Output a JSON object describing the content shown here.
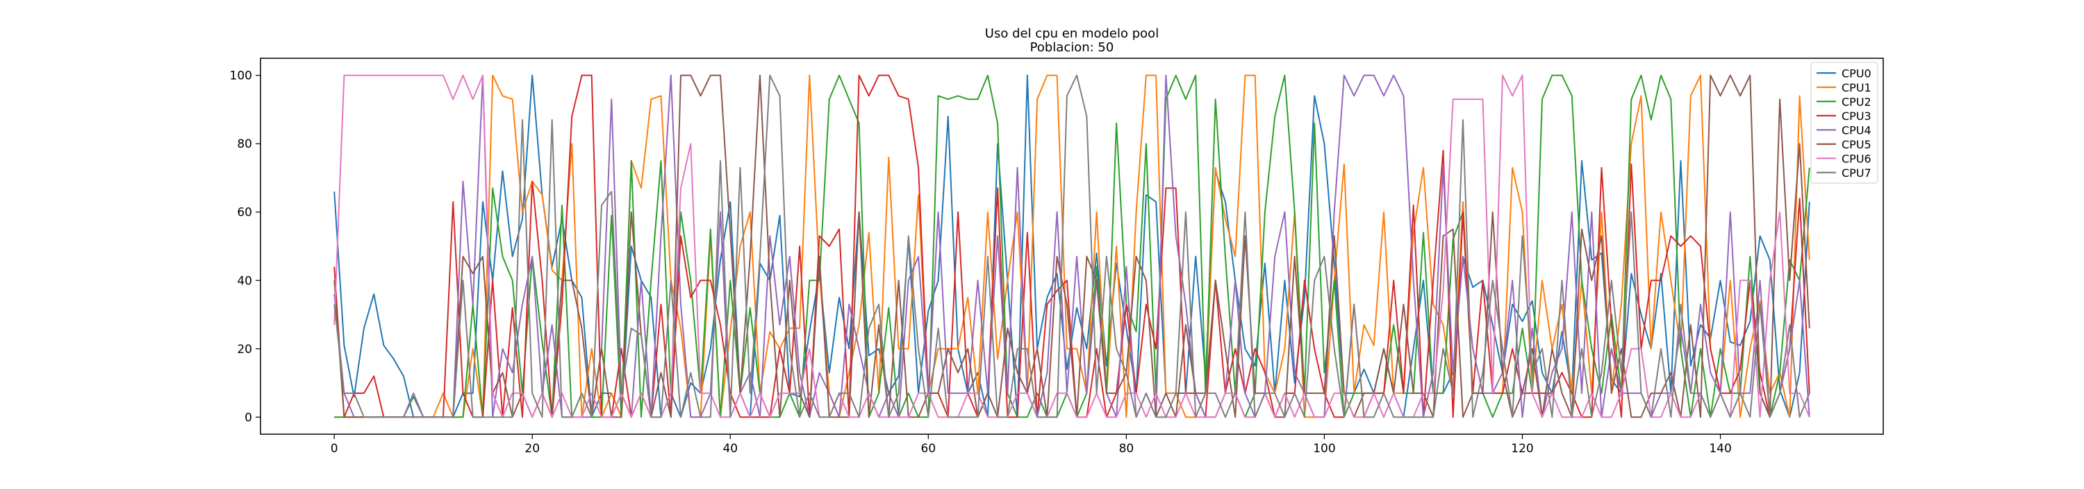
{
  "chart_data": {
    "type": "line",
    "title": "Uso del cpu en modelo pool",
    "subtitle": "Poblacion: 50",
    "xlabel": "",
    "ylabel": "",
    "xlim": [
      -7.45,
      156.45
    ],
    "ylim": [
      -5,
      105
    ],
    "xticks": [
      0,
      20,
      40,
      60,
      80,
      100,
      120,
      140
    ],
    "yticks": [
      0,
      20,
      40,
      60,
      80,
      100
    ],
    "grid": false,
    "legend_position": "top-right",
    "x": [
      0,
      1,
      2,
      3,
      4,
      5,
      6,
      7,
      8,
      9,
      10,
      11,
      12,
      13,
      14,
      15,
      16,
      17,
      18,
      19,
      20,
      21,
      22,
      23,
      24,
      25,
      26,
      27,
      28,
      29,
      30,
      31,
      32,
      33,
      34,
      35,
      36,
      37,
      38,
      39,
      40,
      41,
      42,
      43,
      44,
      45,
      46,
      47,
      48,
      49,
      50,
      51,
      52,
      53,
      54,
      55,
      56,
      57,
      58,
      59,
      60,
      61,
      62,
      63,
      64,
      65,
      66,
      67,
      68,
      69,
      70,
      71,
      72,
      73,
      74,
      75,
      76,
      77,
      78,
      79,
      80,
      81,
      82,
      83,
      84,
      85,
      86,
      87,
      88,
      89,
      90,
      91,
      92,
      93,
      94,
      95,
      96,
      97,
      98,
      99,
      100,
      101,
      102,
      103,
      104,
      105,
      106,
      107,
      108,
      109,
      110,
      111,
      112,
      113,
      114,
      115,
      116,
      117,
      118,
      119,
      120,
      121,
      122,
      123,
      124,
      125,
      126,
      127,
      128,
      129,
      130,
      131,
      132,
      133,
      134,
      135,
      136,
      137,
      138,
      139,
      140,
      141,
      142,
      143,
      144,
      145,
      146,
      147,
      148,
      149
    ],
    "series": [
      {
        "name": "CPU0",
        "color": "#1f77b4",
        "values": [
          66,
          21,
          6,
          26,
          36,
          21,
          17,
          12,
          0,
          0,
          0,
          0,
          0,
          7,
          7,
          63,
          40,
          72,
          47,
          58,
          100,
          65,
          44,
          58,
          40,
          35,
          0,
          7,
          7,
          0,
          50,
          40,
          35,
          0,
          7,
          0,
          10,
          7,
          20,
          46,
          63,
          7,
          0,
          45,
          40,
          59,
          7,
          6,
          25,
          42,
          13,
          35,
          20,
          60,
          18,
          20,
          7,
          12,
          52,
          7,
          31,
          40,
          88,
          20,
          7,
          13,
          0,
          80,
          40,
          0,
          100,
          20,
          35,
          42,
          14,
          32,
          20,
          48,
          15,
          45,
          26,
          7,
          65,
          63,
          7,
          7,
          7,
          47,
          12,
          72,
          63,
          40,
          20,
          15,
          45,
          7,
          40,
          10,
          35,
          94,
          80,
          45,
          7,
          7,
          14,
          7,
          20,
          7,
          0,
          20,
          40,
          7,
          7,
          13,
          47,
          38,
          40,
          27,
          13,
          33,
          28,
          34,
          13,
          7,
          25,
          7,
          75,
          46,
          48,
          11,
          7,
          42,
          30,
          20,
          42,
          7,
          75,
          15,
          27,
          23,
          40,
          22,
          21,
          28,
          53,
          46,
          8,
          0,
          13,
          63
        ]
      },
      {
        "name": "CPU1",
        "color": "#ff7f0e",
        "values": [
          0,
          0,
          0,
          0,
          0,
          0,
          0,
          0,
          0,
          0,
          0,
          7,
          0,
          0,
          20,
          0,
          100,
          94,
          93,
          60,
          69,
          65,
          43,
          40,
          80,
          0,
          20,
          0,
          7,
          0,
          75,
          67,
          93,
          94,
          40,
          26,
          0,
          0,
          53,
          0,
          25,
          50,
          60,
          7,
          25,
          20,
          26,
          26,
          100,
          42,
          7,
          0,
          13,
          27,
          54,
          7,
          76,
          20,
          20,
          65,
          7,
          20,
          20,
          20,
          35,
          7,
          60,
          17,
          40,
          60,
          7,
          93,
          100,
          100,
          20,
          20,
          7,
          60,
          7,
          50,
          0,
          60,
          100,
          100,
          7,
          7,
          0,
          0,
          7,
          73,
          58,
          47,
          100,
          100,
          13,
          7,
          20,
          60,
          0,
          0,
          0,
          40,
          74,
          7,
          27,
          21,
          60,
          7,
          7,
          54,
          73,
          33,
          27,
          7,
          63,
          7,
          7,
          7,
          7,
          73,
          60,
          7,
          40,
          20,
          33,
          7,
          40,
          7,
          60,
          7,
          33,
          80,
          94,
          20,
          60,
          40,
          20,
          94,
          100,
          20,
          7,
          40,
          0,
          20,
          34,
          7,
          13,
          0,
          94,
          46
        ]
      },
      {
        "name": "CPU2",
        "color": "#2ca02c",
        "values": [
          0,
          0,
          0,
          0,
          0,
          0,
          0,
          0,
          6,
          0,
          0,
          0,
          0,
          0,
          33,
          0,
          67,
          47,
          40,
          7,
          47,
          22,
          0,
          62,
          0,
          7,
          0,
          0,
          59,
          0,
          75,
          0,
          40,
          75,
          7,
          60,
          40,
          7,
          55,
          0,
          40,
          7,
          32,
          7,
          0,
          0,
          7,
          0,
          40,
          40,
          93,
          100,
          93,
          86,
          0,
          7,
          32,
          0,
          7,
          0,
          0,
          94,
          93,
          94,
          93,
          93,
          100,
          86,
          7,
          0,
          0,
          7,
          0,
          0,
          7,
          0,
          7,
          44,
          7,
          86,
          33,
          25,
          80,
          7,
          93,
          100,
          93,
          100,
          7,
          93,
          47,
          7,
          0,
          7,
          60,
          88,
          100,
          60,
          7,
          86,
          13,
          40,
          0,
          7,
          7,
          7,
          7,
          27,
          7,
          7,
          54,
          7,
          7,
          52,
          60,
          7,
          7,
          0,
          7,
          7,
          26,
          7,
          93,
          100,
          100,
          94,
          40,
          20,
          7,
          30,
          7,
          93,
          100,
          87,
          100,
          93,
          20,
          0,
          20,
          0,
          20,
          7,
          7,
          47,
          7,
          0,
          13,
          46,
          40,
          73
        ]
      },
      {
        "name": "CPU3",
        "color": "#d62728",
        "values": [
          44,
          0,
          7,
          7,
          12,
          0,
          0,
          0,
          0,
          0,
          0,
          0,
          63,
          7,
          0,
          0,
          40,
          0,
          32,
          0,
          69,
          40,
          0,
          33,
          88,
          100,
          100,
          0,
          0,
          20,
          0,
          7,
          0,
          33,
          0,
          53,
          35,
          40,
          40,
          27,
          7,
          0,
          0,
          0,
          0,
          20,
          7,
          50,
          0,
          53,
          50,
          55,
          0,
          100,
          94,
          100,
          100,
          94,
          93,
          73,
          7,
          7,
          0,
          60,
          7,
          0,
          7,
          67,
          0,
          0,
          54,
          0,
          33,
          37,
          40,
          0,
          0,
          20,
          0,
          7,
          33,
          7,
          33,
          20,
          67,
          67,
          7,
          7,
          0,
          40,
          7,
          20,
          7,
          20,
          13,
          0,
          7,
          7,
          40,
          20,
          7,
          0,
          0,
          33,
          0,
          7,
          7,
          40,
          7,
          62,
          0,
          40,
          78,
          0,
          60,
          7,
          40,
          7,
          7,
          20,
          7,
          7,
          7,
          7,
          13,
          7,
          0,
          0,
          73,
          27,
          0,
          74,
          20,
          40,
          40,
          53,
          50,
          53,
          50,
          20,
          7,
          7,
          14,
          40,
          13,
          0,
          7,
          20,
          64,
          7
        ]
      },
      {
        "name": "CPU4",
        "color": "#9467bd",
        "values": [
          36,
          7,
          0,
          0,
          0,
          0,
          0,
          0,
          7,
          0,
          0,
          0,
          0,
          69,
          33,
          100,
          0,
          20,
          13,
          33,
          47,
          7,
          27,
          0,
          0,
          0,
          0,
          20,
          93,
          7,
          0,
          40,
          0,
          53,
          100,
          33,
          0,
          0,
          7,
          60,
          0,
          7,
          13,
          0,
          53,
          27,
          47,
          13,
          0,
          13,
          7,
          0,
          33,
          20,
          7,
          0,
          7,
          0,
          40,
          47,
          7,
          60,
          7,
          7,
          7,
          40,
          7,
          53,
          7,
          73,
          7,
          0,
          13,
          60,
          7,
          47,
          7,
          40,
          7,
          0,
          44,
          0,
          7,
          0,
          100,
          53,
          33,
          7,
          0,
          0,
          7,
          40,
          7,
          0,
          7,
          47,
          60,
          13,
          7,
          0,
          0,
          60,
          100,
          94,
          100,
          100,
          94,
          100,
          94,
          40,
          0,
          13,
          73,
          13,
          47,
          20,
          7,
          7,
          13,
          40,
          0,
          26,
          0,
          13,
          20,
          60,
          7,
          60,
          0,
          20,
          7,
          7,
          7,
          0,
          7,
          7,
          26,
          7,
          33,
          13,
          7,
          60,
          7,
          7,
          40,
          0,
          7,
          20,
          40,
          0
        ]
      },
      {
        "name": "CPU5",
        "color": "#8c564b",
        "values": [
          40,
          0,
          0,
          0,
          0,
          0,
          0,
          0,
          0,
          0,
          0,
          0,
          0,
          47,
          42,
          47,
          7,
          13,
          0,
          7,
          0,
          7,
          0,
          40,
          40,
          26,
          0,
          20,
          0,
          0,
          60,
          24,
          0,
          13,
          0,
          100,
          100,
          94,
          100,
          100,
          54,
          7,
          47,
          100,
          40,
          0,
          40,
          7,
          0,
          47,
          0,
          0,
          0,
          60,
          0,
          27,
          0,
          40,
          0,
          0,
          7,
          7,
          20,
          13,
          20,
          0,
          7,
          0,
          26,
          13,
          7,
          20,
          0,
          47,
          33,
          0,
          47,
          40,
          7,
          7,
          13,
          47,
          40,
          0,
          7,
          0,
          27,
          7,
          7,
          40,
          20,
          0,
          53,
          7,
          7,
          0,
          0,
          47,
          7,
          7,
          7,
          53,
          7,
          0,
          7,
          7,
          20,
          7,
          33,
          7,
          7,
          0,
          53,
          55,
          0,
          7,
          7,
          60,
          13,
          0,
          7,
          20,
          0,
          20,
          7,
          0,
          55,
          40,
          53,
          7,
          20,
          0,
          0,
          7,
          7,
          13,
          0,
          27,
          0,
          100,
          94,
          100,
          94,
          100,
          7,
          0,
          93,
          40,
          80,
          26
        ]
      },
      {
        "name": "CPU6",
        "color": "#e377c2",
        "values": [
          27,
          100,
          100,
          100,
          100,
          100,
          100,
          100,
          100,
          100,
          100,
          100,
          93,
          100,
          93,
          100,
          7,
          0,
          7,
          7,
          0,
          7,
          0,
          7,
          0,
          0,
          7,
          0,
          0,
          7,
          0,
          7,
          0,
          0,
          7,
          67,
          80,
          7,
          7,
          0,
          0,
          7,
          0,
          7,
          0,
          7,
          7,
          7,
          20,
          0,
          0,
          7,
          0,
          0,
          7,
          0,
          0,
          0,
          0,
          7,
          7,
          0,
          0,
          0,
          7,
          7,
          0,
          0,
          0,
          7,
          7,
          0,
          0,
          7,
          7,
          0,
          0,
          7,
          0,
          0,
          7,
          7,
          0,
          7,
          0,
          0,
          7,
          0,
          0,
          0,
          7,
          7,
          0,
          0,
          7,
          0,
          7,
          0,
          7,
          0,
          0,
          7,
          7,
          0,
          0,
          7,
          0,
          7,
          0,
          0,
          7,
          7,
          37,
          93,
          93,
          93,
          93,
          7,
          100,
          94,
          100,
          7,
          0,
          7,
          0,
          0,
          0,
          7,
          0,
          0,
          7,
          20,
          20,
          0,
          0,
          7,
          0,
          0,
          7,
          0,
          7,
          0,
          40,
          40,
          0,
          40,
          60,
          7,
          7,
          0
        ]
      },
      {
        "name": "CPU7",
        "color": "#7f7f7f",
        "values": [
          33,
          7,
          7,
          0,
          0,
          0,
          0,
          0,
          0,
          0,
          0,
          0,
          0,
          40,
          0,
          0,
          0,
          0,
          0,
          87,
          7,
          0,
          87,
          0,
          0,
          7,
          0,
          62,
          66,
          7,
          26,
          24,
          0,
          0,
          40,
          0,
          13,
          0,
          0,
          75,
          0,
          73,
          7,
          47,
          100,
          94,
          20,
          0,
          7,
          0,
          0,
          7,
          7,
          0,
          26,
          33,
          0,
          7,
          53,
          20,
          0,
          26,
          0,
          0,
          0,
          0,
          47,
          0,
          0,
          20,
          20,
          0,
          0,
          0,
          94,
          100,
          88,
          7,
          47,
          20,
          13,
          0,
          7,
          0,
          0,
          7,
          60,
          0,
          7,
          7,
          0,
          7,
          60,
          0,
          7,
          7,
          0,
          7,
          0,
          40,
          47,
          20,
          0,
          33,
          0,
          0,
          7,
          0,
          0,
          0,
          0,
          0,
          20,
          7,
          87,
          0,
          13,
          40,
          20,
          0,
          53,
          13,
          20,
          0,
          40,
          0,
          20,
          0,
          13,
          40,
          13,
          60,
          7,
          0,
          20,
          0,
          33,
          7,
          7,
          0,
          7,
          0,
          7,
          0,
          33,
          0,
          7,
          27,
          0,
          7
        ]
      }
    ]
  }
}
